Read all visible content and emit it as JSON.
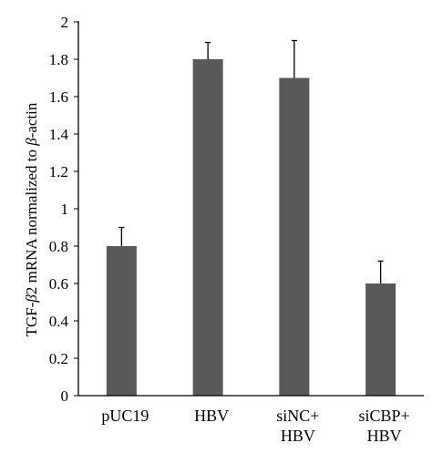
{
  "chart_data": {
    "type": "bar",
    "categories": [
      [
        "pUC19"
      ],
      [
        "HBV"
      ],
      [
        "siNC+",
        "HBV"
      ],
      [
        "siCBP+",
        "HBV"
      ]
    ],
    "values": [
      0.8,
      1.8,
      1.7,
      0.6
    ],
    "error_bars": [
      0.1,
      0.09,
      0.2,
      0.12
    ],
    "ylabel_parts": [
      "TGF-",
      "β",
      "2 mRNA normalized to ",
      "β",
      "-actin"
    ],
    "ylim": [
      0,
      2
    ],
    "yticks": [
      "0",
      "0.2",
      "0.4",
      "0.6",
      "0.8",
      "1",
      "1.2",
      "1.4",
      "1.6",
      "1.8",
      "2"
    ],
    "grid": false,
    "legend": "none",
    "bar_color": "#595959",
    "axis_color": "#000000",
    "error_color": "#000000"
  }
}
